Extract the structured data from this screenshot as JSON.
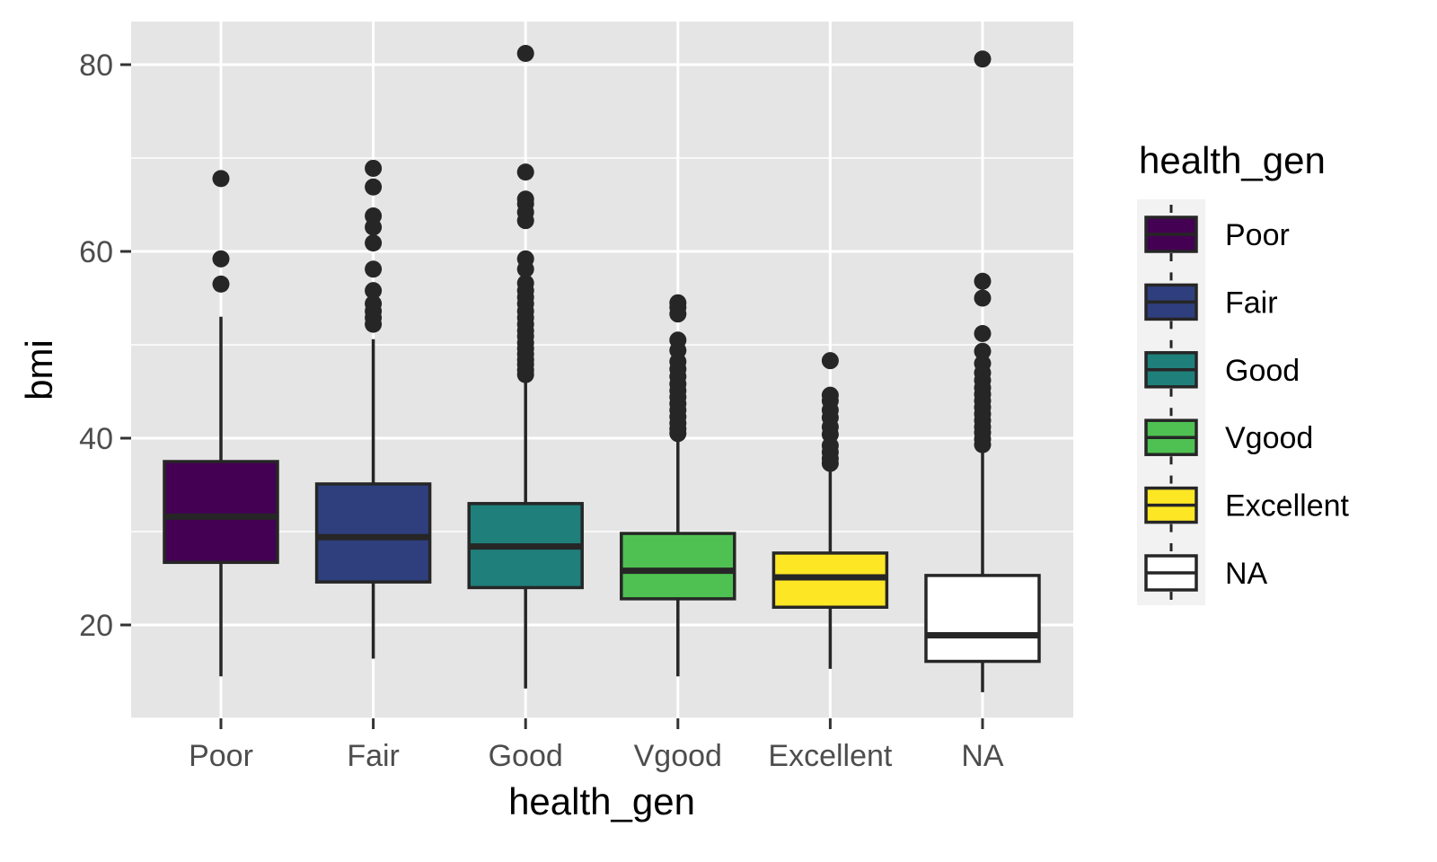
{
  "chart_data": {
    "type": "boxplot",
    "title": "",
    "xlabel": "health_gen",
    "ylabel": "bmi",
    "ylim": [
      10,
      85
    ],
    "y_ticks": [
      20,
      40,
      60,
      80
    ],
    "y_minor_ticks": [
      10,
      30,
      50,
      70
    ],
    "grid": true,
    "legend": {
      "title": "health_gen",
      "placement": "right"
    },
    "categories": [
      "Poor",
      "Fair",
      "Good",
      "Vgood",
      "Excellent",
      "NA"
    ],
    "series": [
      {
        "category": "Poor",
        "color": "#440154",
        "whisker_low": 14.5,
        "q1": 26.7,
        "median": 31.6,
        "q3": 37.5,
        "whisker_high": 53.0,
        "outliers": [
          56.5,
          59.2,
          67.8
        ]
      },
      {
        "category": "Fair",
        "color": "#2f3f7e",
        "whisker_low": 16.4,
        "q1": 24.6,
        "median": 29.4,
        "q3": 35.1,
        "whisker_high": 50.6,
        "outliers": [
          52.2,
          52.9,
          53.6,
          54.4,
          55.8,
          58.1,
          60.9,
          62.6,
          63.8,
          66.9,
          68.9
        ]
      },
      {
        "category": "Good",
        "color": "#1f7f7a",
        "whisker_low": 13.2,
        "q1": 24.0,
        "median": 28.4,
        "q3": 33.0,
        "whisker_high": 46.5,
        "outliers": [
          46.8,
          47.3,
          47.9,
          48.4,
          49.0,
          49.6,
          50.2,
          50.9,
          51.5,
          52.2,
          52.9,
          53.6,
          54.4,
          55.1,
          55.8,
          56.6,
          58.1,
          59.2,
          63.3,
          64.2,
          65.1,
          65.6,
          68.5,
          81.2
        ]
      },
      {
        "category": "Vgood",
        "color": "#4fc152",
        "whisker_low": 14.5,
        "q1": 22.8,
        "median": 25.8,
        "q3": 29.8,
        "whisker_high": 40.2,
        "outliers": [
          40.5,
          41.0,
          41.6,
          42.3,
          43.0,
          43.7,
          44.4,
          45.1,
          45.8,
          46.6,
          47.4,
          48.2,
          49.4,
          50.5,
          53.3,
          54.0,
          54.5
        ]
      },
      {
        "category": "Excellent",
        "color": "#fde725",
        "whisker_low": 15.3,
        "q1": 21.9,
        "median": 25.1,
        "q3": 27.7,
        "whisker_high": 36.6,
        "outliers": [
          37.3,
          37.8,
          38.5,
          39.2,
          40.4,
          41.2,
          42.2,
          43.0,
          44.0,
          44.6,
          48.3
        ]
      },
      {
        "category": "NA",
        "color": "#ffffff",
        "whisker_low": 12.8,
        "q1": 16.1,
        "median": 18.9,
        "q3": 25.3,
        "whisker_high": 38.8,
        "outliers": [
          39.3,
          39.9,
          40.6,
          41.2,
          41.9,
          42.6,
          43.3,
          44.0,
          44.7,
          45.4,
          46.2,
          47.0,
          48.0,
          49.3,
          51.2,
          55.0,
          56.8,
          80.6
        ]
      }
    ]
  }
}
